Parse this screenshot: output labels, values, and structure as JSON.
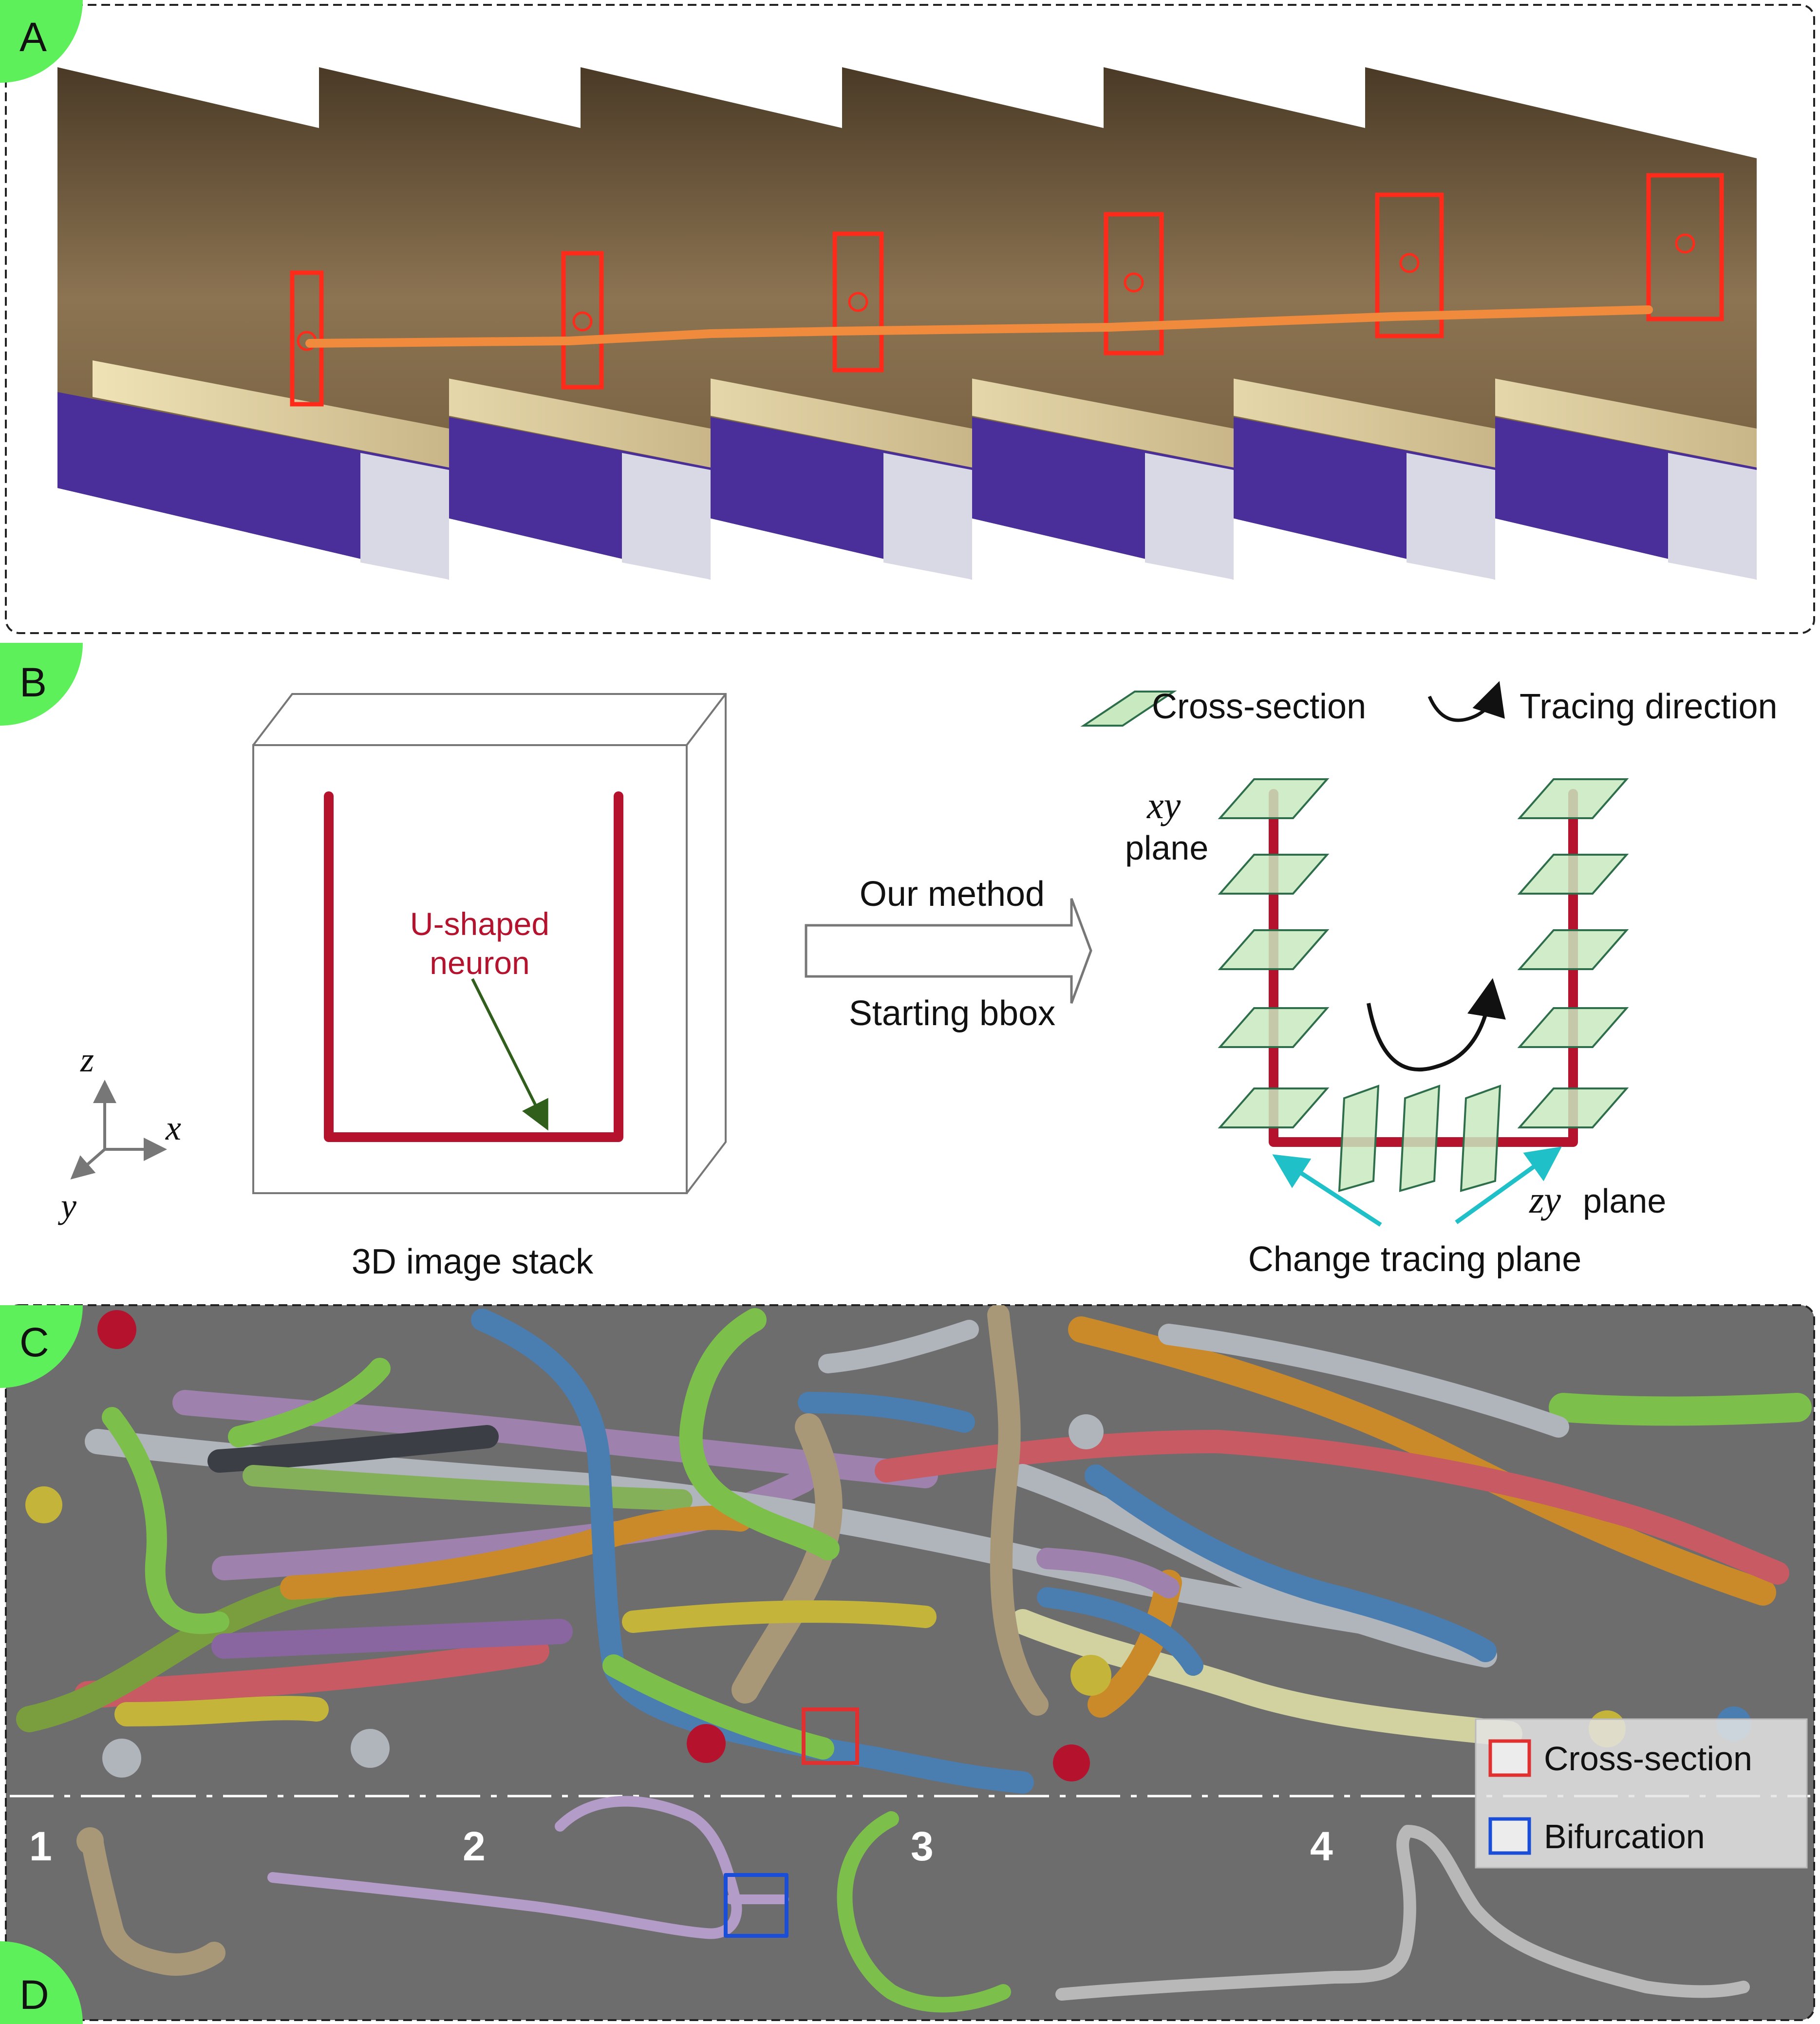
{
  "panels": {
    "a": {
      "badge": "A"
    },
    "b": {
      "badge": "B",
      "neuron_label_line1": "U-shaped",
      "neuron_label_line2": "neuron",
      "stack_caption": "3D image stack",
      "arrow_top": "Our method",
      "arrow_bottom": "Starting bbox",
      "legend_cross": "Cross-section",
      "legend_direction": "Tracing direction",
      "xy_math": "xy",
      "xy_plane": "plane",
      "zy_math": "zy",
      "zy_plane": "plane",
      "change_plane": "Change tracing plane",
      "axis_z": "z",
      "axis_x": "x",
      "axis_y": "y"
    },
    "c": {
      "badge": "C",
      "legend_cross": "Cross-section",
      "legend_bif": "Bifurcation"
    },
    "d": {
      "badge": "D",
      "labels": [
        "1",
        "2",
        "3",
        "4"
      ]
    }
  },
  "colors": {
    "badge_green": "#5ef05a",
    "neuron_red": "#b5122e",
    "track_orange": "#f08a3c",
    "box_red": "#ff2a1a",
    "plane_fill": "#c9e9c0",
    "plane_stroke": "#2e6e4a",
    "cyan_arrow": "#1fc0c8",
    "dark_green_arrow": "#2f5f1a",
    "panel_gray": "#6d6d6d",
    "legend_red": "#e03030",
    "legend_blue": "#1a4ed8"
  }
}
